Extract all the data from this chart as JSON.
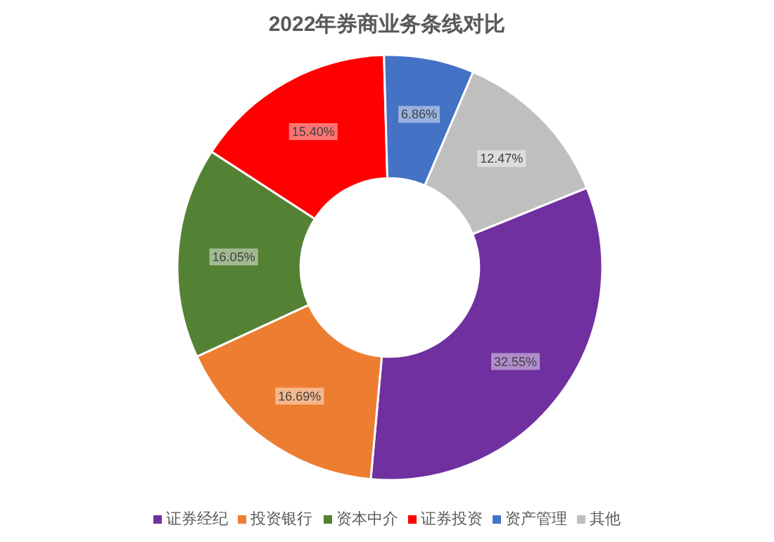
{
  "chart_data": {
    "type": "donut",
    "title": "2022年券商业务条线对比",
    "categories": [
      "证券经纪",
      "投资银行",
      "资本中介",
      "证券投资",
      "资产管理",
      "其他"
    ],
    "values": [
      32.55,
      16.69,
      16.05,
      15.4,
      6.86,
      12.47
    ],
    "colors": [
      "#7030a0",
      "#ed7d31",
      "#548235",
      "#ff0000",
      "#4472c4",
      "#bfbfbf"
    ],
    "value_labels": [
      "32.55%",
      "16.69%",
      "16.05%",
      "15.40%",
      "6.86%",
      "12.47%"
    ],
    "legend": "bottom"
  }
}
